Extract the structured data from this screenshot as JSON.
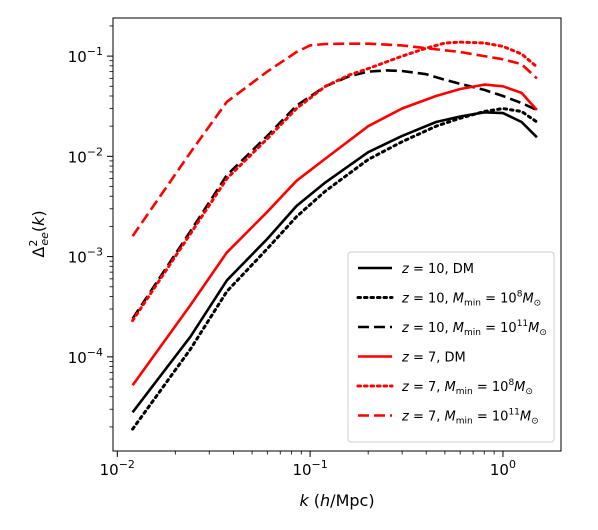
{
  "chart_data": {
    "type": "line",
    "xlabel": "k (h/Mpc)",
    "ylabel": "Δ²ee(k)",
    "x_scale": "log",
    "y_scale": "log",
    "xlim": [
      0.0095,
      2.0
    ],
    "ylim": [
      1.15e-05,
      0.24
    ],
    "x_ticks": [
      {
        "value": 0.01,
        "base": "10",
        "exp": "−2"
      },
      {
        "value": 0.1,
        "base": "10",
        "exp": "−1"
      },
      {
        "value": 1,
        "base": "10",
        "exp": "0"
      }
    ],
    "y_ticks": [
      {
        "value": 0.0001,
        "base": "10",
        "exp": "−4"
      },
      {
        "value": 0.001,
        "base": "10",
        "exp": "−3"
      },
      {
        "value": 0.01,
        "base": "10",
        "exp": "−2"
      },
      {
        "value": 0.1,
        "base": "10",
        "exp": "−1"
      }
    ],
    "grid": false,
    "legend_position": "lower-right",
    "series": [
      {
        "name": "z = 10, DM",
        "color": "#000000",
        "style": "solid",
        "x": [
          0.012,
          0.024,
          0.037,
          0.06,
          0.085,
          0.12,
          0.2,
          0.3,
          0.45,
          0.6,
          0.8,
          1.0,
          1.25,
          1.5
        ],
        "y": [
          2.8e-05,
          0.00016,
          0.00058,
          0.0015,
          0.0032,
          0.0055,
          0.011,
          0.016,
          0.022,
          0.025,
          0.0275,
          0.027,
          0.022,
          0.0155
        ]
      },
      {
        "name": "z = 10, M_min = 10^8 M_⊙",
        "color": "#000000",
        "style": "dotted",
        "x": [
          0.012,
          0.024,
          0.037,
          0.06,
          0.085,
          0.12,
          0.2,
          0.3,
          0.45,
          0.6,
          0.8,
          1.0,
          1.25,
          1.5
        ],
        "y": [
          1.9e-05,
          0.00012,
          0.00045,
          0.0012,
          0.0025,
          0.0045,
          0.0093,
          0.014,
          0.02,
          0.024,
          0.028,
          0.03,
          0.028,
          0.022
        ]
      },
      {
        "name": "z = 10, M_min = 10^11 M_⊙",
        "color": "#000000",
        "style": "dashed",
        "x": [
          0.012,
          0.024,
          0.037,
          0.06,
          0.085,
          0.12,
          0.16,
          0.2,
          0.25,
          0.3,
          0.4,
          0.5,
          0.6,
          0.8,
          1.0,
          1.25,
          1.5
        ],
        "y": [
          0.00024,
          0.0018,
          0.0065,
          0.016,
          0.032,
          0.05,
          0.063,
          0.07,
          0.072,
          0.071,
          0.066,
          0.058,
          0.053,
          0.046,
          0.04,
          0.034,
          0.029
        ]
      },
      {
        "name": "z = 7, DM",
        "color": "#ff0000",
        "style": "solid",
        "x": [
          0.012,
          0.024,
          0.037,
          0.06,
          0.085,
          0.12,
          0.2,
          0.3,
          0.45,
          0.6,
          0.8,
          1.0,
          1.25,
          1.5
        ],
        "y": [
          5.2e-05,
          0.00033,
          0.0011,
          0.0028,
          0.0057,
          0.0095,
          0.02,
          0.03,
          0.04,
          0.047,
          0.052,
          0.05,
          0.043,
          0.029
        ]
      },
      {
        "name": "z = 7, M_min = 10^8 M_⊙",
        "color": "#ff0000",
        "style": "dotted",
        "x": [
          0.012,
          0.024,
          0.037,
          0.06,
          0.085,
          0.12,
          0.16,
          0.2,
          0.3,
          0.4,
          0.5,
          0.6,
          0.8,
          1.0,
          1.25,
          1.5
        ],
        "y": [
          0.00023,
          0.0017,
          0.006,
          0.015,
          0.03,
          0.05,
          0.065,
          0.075,
          0.1,
          0.12,
          0.135,
          0.138,
          0.135,
          0.125,
          0.105,
          0.078
        ]
      },
      {
        "name": "z = 7, M_min = 10^11 M_⊙",
        "color": "#ff0000",
        "style": "dashed",
        "x": [
          0.012,
          0.024,
          0.037,
          0.06,
          0.085,
          0.1,
          0.12,
          0.15,
          0.2,
          0.3,
          0.4,
          0.6,
          0.8,
          1.0,
          1.25,
          1.5
        ],
        "y": [
          0.0016,
          0.011,
          0.035,
          0.07,
          0.11,
          0.128,
          0.132,
          0.133,
          0.133,
          0.128,
          0.12,
          0.11,
          0.1,
          0.093,
          0.083,
          0.06
        ]
      }
    ]
  }
}
